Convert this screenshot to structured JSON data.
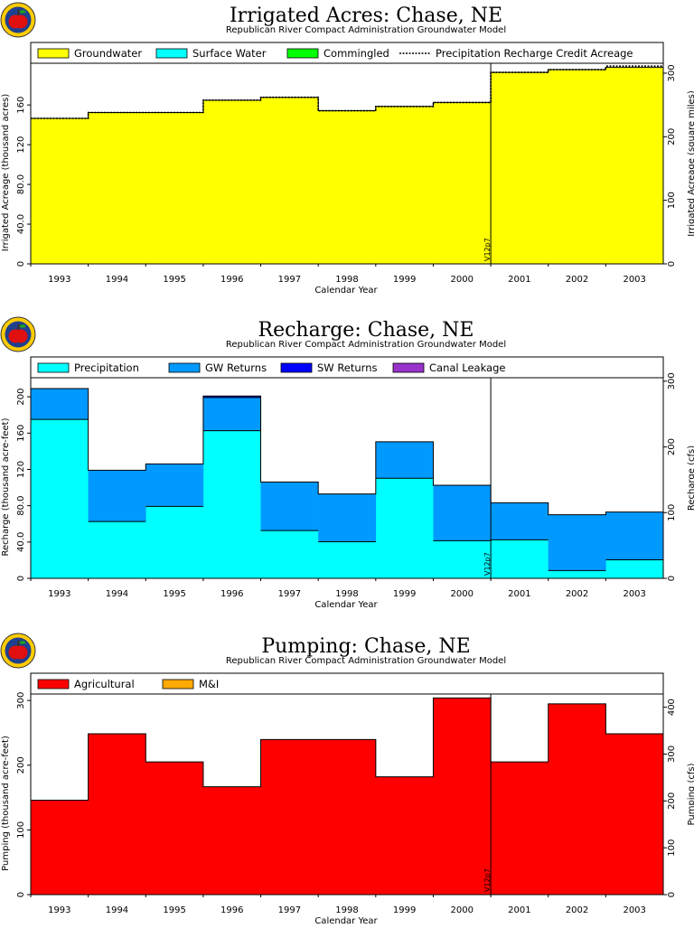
{
  "chart_data": [
    {
      "type": "area",
      "title": "Irrigated Acres: Chase, NE",
      "subtitle": "Republican River Compact Administration Groundwater Model",
      "xlabel": "Calendar Year",
      "ylabel": "Irrigated Acreage (thousand acres)",
      "y2label": "Irrigated Acreage (square miles)",
      "categories": [
        "1993",
        "1994",
        "1995",
        "1996",
        "1997",
        "1998",
        "1999",
        "2000",
        "2001",
        "2002",
        "2003"
      ],
      "ylim": [
        0,
        202
      ],
      "yticks": [
        "0",
        "40.0",
        "80.0",
        "120",
        "160"
      ],
      "y2lim": [
        0,
        315.6
      ],
      "y2ticks": [
        "0",
        "100",
        "200",
        "300"
      ],
      "series": [
        {
          "name": "Groundwater",
          "color": "#ffff00",
          "values": [
            146.5,
            152.4,
            152.4,
            164.8,
            167.7,
            154.2,
            158.5,
            162.5,
            192.8,
            195.6,
            197.8
          ]
        },
        {
          "name": "Surface Water",
          "color": "#00ffff",
          "values": [
            0,
            0,
            0,
            0,
            0,
            0,
            0,
            0,
            0,
            0,
            0
          ]
        },
        {
          "name": "Commingled",
          "color": "#00ff00",
          "values": [
            0,
            0,
            0,
            0,
            0,
            0,
            0,
            0,
            0,
            0,
            0
          ]
        }
      ],
      "line_series": {
        "name": "Precipitation Recharge Credit Acreage",
        "values": [
          146.5,
          152.4,
          152.4,
          164.8,
          167.7,
          154.2,
          158.5,
          162.5,
          192.8,
          195.6,
          199.1
        ]
      },
      "marker": {
        "label": "V12p7",
        "after_index": 7
      }
    },
    {
      "type": "area",
      "title": "Recharge: Chase, NE",
      "subtitle": "Republican River Compact Administration Groundwater Model",
      "xlabel": "Calendar Year",
      "ylabel": "Recharge (thousand acre-feet)",
      "y2label": "Recharge (cfs)",
      "categories": [
        "1993",
        "1994",
        "1995",
        "1996",
        "1997",
        "1998",
        "1999",
        "2000",
        "2001",
        "2002",
        "2003"
      ],
      "ylim": [
        0,
        221
      ],
      "yticks": [
        "0",
        "40.0",
        "80.0",
        "120",
        "160",
        "200"
      ],
      "y2lim": [
        0,
        305.3
      ],
      "y2ticks": [
        "0",
        "100",
        "200",
        "300"
      ],
      "series": [
        {
          "name": "Precipitation",
          "color": "#00ffff",
          "values": [
            175.1,
            62.6,
            79.3,
            162.6,
            52.6,
            40.3,
            110.2,
            41.4,
            42.4,
            8.6,
            20.4
          ]
        },
        {
          "name": "GW Returns",
          "color": "#0099ff",
          "values": [
            33.9,
            56.5,
            46.7,
            36.6,
            53.5,
            52.7,
            40.2,
            61.1,
            40.9,
            61.4,
            52.6
          ]
        },
        {
          "name": "SW Returns",
          "color": "#0000ff",
          "values": [
            0,
            0,
            0,
            1.6,
            0,
            0,
            0,
            0,
            0,
            0,
            0
          ]
        },
        {
          "name": "Canal Leakage",
          "color": "#9933cc",
          "values": [
            0,
            0,
            0,
            0,
            0,
            0,
            0,
            0,
            0,
            0,
            0
          ]
        }
      ],
      "marker": {
        "label": "V12p7",
        "after_index": 7
      }
    },
    {
      "type": "area",
      "title": "Pumping: Chase, NE",
      "subtitle": "Republican River Compact Administration Groundwater Model",
      "xlabel": "Calendar Year",
      "ylabel": "Pumping (thousand acre-feet)",
      "y2label": "Pumping (cfs)",
      "categories": [
        "1993",
        "1994",
        "1995",
        "1996",
        "1997",
        "1998",
        "1999",
        "2000",
        "2001",
        "2002",
        "2003"
      ],
      "ylim": [
        0,
        310
      ],
      "yticks": [
        "0",
        "100",
        "200",
        "300"
      ],
      "y2lim": [
        0,
        428.2
      ],
      "y2ticks": [
        "0",
        "100",
        "200",
        "300",
        "400"
      ],
      "series": [
        {
          "name": "Agricultural",
          "color": "#ff0000",
          "values": [
            146,
            248.6,
            205.1,
            166.7,
            239.7,
            239.7,
            182.1,
            303.9,
            205.1,
            294.8,
            248.6
          ]
        },
        {
          "name": "M&I",
          "color": "#ffaa00",
          "values": [
            0,
            0,
            0,
            0,
            0,
            0,
            0,
            0,
            0,
            0,
            0
          ]
        }
      ],
      "marker": {
        "label": "V12p7",
        "after_index": 7
      }
    }
  ]
}
